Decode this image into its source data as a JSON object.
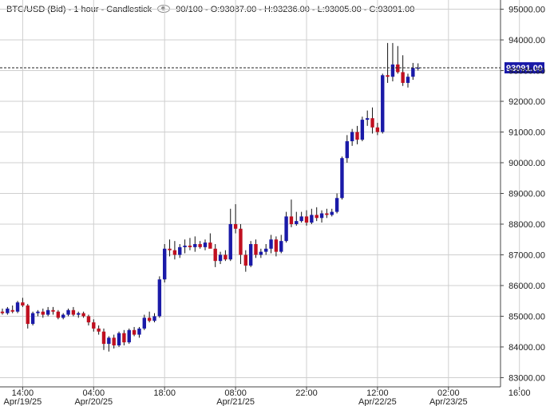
{
  "header": {
    "instrument": "BTC/USD (Bid) - 1 hour - Candlestick",
    "quote": "90/100 - O:93087.00 - H:93236.00 - L:93005.00 - C:93091.00",
    "view_icon": "eye-icon"
  },
  "colors": {
    "up": "#1a1aa8",
    "down": "#c01020",
    "grid": "#cfcfcf",
    "last_price_bg": "#1a1aa8"
  },
  "chart_data": {
    "type": "candlestick",
    "title": "",
    "ylim": [
      82700,
      95300
    ],
    "y_ticks": [
      "95000.00",
      "94000.00",
      "93000.00",
      "92000.00",
      "91000.00",
      "90000.00",
      "89000.00",
      "88000.00",
      "87000.00",
      "86000.00",
      "85000.00",
      "84000.00",
      "83000.00"
    ],
    "y_tick_values": [
      95000,
      94000,
      93000,
      92000,
      91000,
      90000,
      89000,
      88000,
      87000,
      86000,
      85000,
      84000,
      83000
    ],
    "x_ticks": [
      {
        "time": "14:00",
        "date": "Apr/19/25",
        "index": 4
      },
      {
        "time": "04:00",
        "date": "Apr/20/25",
        "index": 18
      },
      {
        "time": "18:00",
        "date": "",
        "index": 32
      },
      {
        "time": "08:00",
        "date": "Apr/21/25",
        "index": 46
      },
      {
        "time": "22:00",
        "date": "",
        "index": 60
      },
      {
        "time": "12:00",
        "date": "Apr/22/25",
        "index": 74
      },
      {
        "time": "02:00",
        "date": "Apr/23/25",
        "index": 88
      },
      {
        "time": "16:00",
        "date": "",
        "index": 102
      }
    ],
    "last_price": 93091.0,
    "last_price_label": "93091.00",
    "candles": [
      {
        "o": 85150,
        "h": 85250,
        "l": 85050,
        "c": 85100
      },
      {
        "o": 85100,
        "h": 85300,
        "l": 85050,
        "c": 85250
      },
      {
        "o": 85200,
        "h": 85350,
        "l": 85100,
        "c": 85150
      },
      {
        "o": 85150,
        "h": 85500,
        "l": 85100,
        "c": 85450
      },
      {
        "o": 85450,
        "h": 85600,
        "l": 85300,
        "c": 85350
      },
      {
        "o": 85350,
        "h": 85400,
        "l": 84600,
        "c": 84750
      },
      {
        "o": 84750,
        "h": 85150,
        "l": 84700,
        "c": 85100
      },
      {
        "o": 85100,
        "h": 85200,
        "l": 85000,
        "c": 85150
      },
      {
        "o": 85150,
        "h": 85250,
        "l": 84950,
        "c": 85050
      },
      {
        "o": 85050,
        "h": 85300,
        "l": 85000,
        "c": 85200
      },
      {
        "o": 85200,
        "h": 85300,
        "l": 85050,
        "c": 85150
      },
      {
        "o": 85150,
        "h": 85200,
        "l": 84900,
        "c": 84950
      },
      {
        "o": 84950,
        "h": 85100,
        "l": 84900,
        "c": 85050
      },
      {
        "o": 85050,
        "h": 85250,
        "l": 85000,
        "c": 85200
      },
      {
        "o": 85200,
        "h": 85300,
        "l": 85000,
        "c": 85050
      },
      {
        "o": 85050,
        "h": 85150,
        "l": 84950,
        "c": 85100
      },
      {
        "o": 85100,
        "h": 85150,
        "l": 84950,
        "c": 85000
      },
      {
        "o": 85000,
        "h": 85050,
        "l": 84700,
        "c": 84800
      },
      {
        "o": 84800,
        "h": 84900,
        "l": 84500,
        "c": 84600
      },
      {
        "o": 84600,
        "h": 84700,
        "l": 84400,
        "c": 84500
      },
      {
        "o": 84500,
        "h": 84600,
        "l": 83900,
        "c": 84100
      },
      {
        "o": 84100,
        "h": 84350,
        "l": 83850,
        "c": 84300
      },
      {
        "o": 84300,
        "h": 84400,
        "l": 83950,
        "c": 84050
      },
      {
        "o": 84050,
        "h": 84500,
        "l": 84000,
        "c": 84450
      },
      {
        "o": 84450,
        "h": 84550,
        "l": 84050,
        "c": 84150
      },
      {
        "o": 84150,
        "h": 84600,
        "l": 84100,
        "c": 84550
      },
      {
        "o": 84550,
        "h": 84650,
        "l": 84350,
        "c": 84400
      },
      {
        "o": 84400,
        "h": 84650,
        "l": 84300,
        "c": 84600
      },
      {
        "o": 84600,
        "h": 85050,
        "l": 84550,
        "c": 84950
      },
      {
        "o": 84950,
        "h": 85150,
        "l": 84800,
        "c": 84850
      },
      {
        "o": 84850,
        "h": 85100,
        "l": 84800,
        "c": 85000
      },
      {
        "o": 85000,
        "h": 86300,
        "l": 84950,
        "c": 86200
      },
      {
        "o": 86200,
        "h": 87350,
        "l": 86100,
        "c": 87200
      },
      {
        "o": 87200,
        "h": 87500,
        "l": 86950,
        "c": 87150
      },
      {
        "o": 87150,
        "h": 87450,
        "l": 86850,
        "c": 87000
      },
      {
        "o": 87000,
        "h": 87350,
        "l": 86900,
        "c": 87250
      },
      {
        "o": 87250,
        "h": 87500,
        "l": 87050,
        "c": 87300
      },
      {
        "o": 87300,
        "h": 87550,
        "l": 87150,
        "c": 87250
      },
      {
        "o": 87250,
        "h": 87600,
        "l": 87100,
        "c": 87350
      },
      {
        "o": 87350,
        "h": 87450,
        "l": 87200,
        "c": 87250
      },
      {
        "o": 87250,
        "h": 87500,
        "l": 87150,
        "c": 87400
      },
      {
        "o": 87400,
        "h": 87700,
        "l": 87250,
        "c": 87200
      },
      {
        "o": 87200,
        "h": 87350,
        "l": 86600,
        "c": 86800
      },
      {
        "o": 86800,
        "h": 87100,
        "l": 86700,
        "c": 87000
      },
      {
        "o": 87000,
        "h": 87150,
        "l": 86800,
        "c": 86850
      },
      {
        "o": 86850,
        "h": 88500,
        "l": 86800,
        "c": 88000
      },
      {
        "o": 88000,
        "h": 88650,
        "l": 87700,
        "c": 87850
      },
      {
        "o": 87850,
        "h": 88000,
        "l": 86700,
        "c": 87000
      },
      {
        "o": 87000,
        "h": 87150,
        "l": 86450,
        "c": 86650
      },
      {
        "o": 86650,
        "h": 87450,
        "l": 86600,
        "c": 87350
      },
      {
        "o": 87350,
        "h": 87500,
        "l": 86900,
        "c": 87000
      },
      {
        "o": 87000,
        "h": 87200,
        "l": 86900,
        "c": 87100
      },
      {
        "o": 87100,
        "h": 87350,
        "l": 87000,
        "c": 87200
      },
      {
        "o": 87200,
        "h": 87650,
        "l": 87050,
        "c": 87500
      },
      {
        "o": 87500,
        "h": 87600,
        "l": 86950,
        "c": 87100
      },
      {
        "o": 87100,
        "h": 87650,
        "l": 87050,
        "c": 87450
      },
      {
        "o": 87450,
        "h": 88400,
        "l": 87400,
        "c": 88250
      },
      {
        "o": 88250,
        "h": 88800,
        "l": 87900,
        "c": 88000
      },
      {
        "o": 88000,
        "h": 88400,
        "l": 87950,
        "c": 88100
      },
      {
        "o": 88100,
        "h": 88400,
        "l": 88050,
        "c": 88250
      },
      {
        "o": 88250,
        "h": 88450,
        "l": 87950,
        "c": 88050
      },
      {
        "o": 88050,
        "h": 88500,
        "l": 88000,
        "c": 88300
      },
      {
        "o": 88300,
        "h": 88550,
        "l": 88100,
        "c": 88200
      },
      {
        "o": 88200,
        "h": 88450,
        "l": 88050,
        "c": 88350
      },
      {
        "o": 88350,
        "h": 88500,
        "l": 88200,
        "c": 88300
      },
      {
        "o": 88300,
        "h": 88500,
        "l": 88250,
        "c": 88400
      },
      {
        "o": 88400,
        "h": 89000,
        "l": 88350,
        "c": 88850
      },
      {
        "o": 88850,
        "h": 90200,
        "l": 88800,
        "c": 90150
      },
      {
        "o": 90150,
        "h": 90900,
        "l": 90000,
        "c": 90700
      },
      {
        "o": 90700,
        "h": 91100,
        "l": 90550,
        "c": 91000
      },
      {
        "o": 91000,
        "h": 91200,
        "l": 90600,
        "c": 90750
      },
      {
        "o": 90750,
        "h": 91500,
        "l": 90700,
        "c": 91400
      },
      {
        "o": 91400,
        "h": 91700,
        "l": 91200,
        "c": 91450
      },
      {
        "o": 91450,
        "h": 91800,
        "l": 90950,
        "c": 91150
      },
      {
        "o": 91150,
        "h": 91300,
        "l": 90900,
        "c": 91000
      },
      {
        "o": 91000,
        "h": 92900,
        "l": 90950,
        "c": 92850
      },
      {
        "o": 92850,
        "h": 93900,
        "l": 92600,
        "c": 92800
      },
      {
        "o": 92800,
        "h": 93900,
        "l": 92650,
        "c": 93200
      },
      {
        "o": 93200,
        "h": 93800,
        "l": 92900,
        "c": 92950
      },
      {
        "o": 92950,
        "h": 93500,
        "l": 92500,
        "c": 92600
      },
      {
        "o": 92600,
        "h": 92900,
        "l": 92450,
        "c": 92800
      },
      {
        "o": 92800,
        "h": 93250,
        "l": 92700,
        "c": 93087
      },
      {
        "o": 93087,
        "h": 93236,
        "l": 93005,
        "c": 93091
      }
    ]
  }
}
